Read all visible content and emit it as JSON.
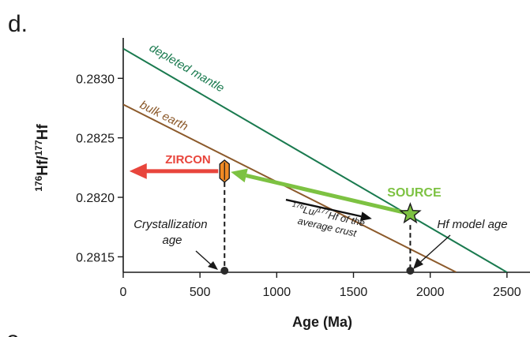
{
  "panel_label": "d.",
  "next_panel_fragment": "e",
  "colors": {
    "depleted_mantle": "#1a7a4f",
    "bulk_earth": "#8c5a2b",
    "zircon": "#e8453c",
    "source": "#7dc242",
    "axis": "#1a1a1a",
    "zircon_marker": "#f08a24",
    "black_arrow": "#111111"
  },
  "chart_data": {
    "type": "line",
    "title": "",
    "xlabel": "Age (Ma)",
    "ylabel_parts": {
      "sup1": "176",
      "base1": "Hf/",
      "sup2": "177",
      "base2": "Hf"
    },
    "xlim": [
      0,
      2650
    ],
    "ylim": [
      0.28137,
      0.28334
    ],
    "x_ticks": [
      0,
      500,
      1000,
      1500,
      2000,
      2500
    ],
    "x_tick_labels": [
      "0",
      "500",
      "1000",
      "1500",
      "2000",
      "2500"
    ],
    "y_ticks": [
      0.2815,
      0.282,
      0.2825,
      0.283
    ],
    "y_tick_labels": [
      "0.2815",
      "0.2820",
      "0.2825",
      "0.2830"
    ],
    "grid": false,
    "series": [
      {
        "name": "depleted mantle",
        "x": [
          0,
          2500
        ],
        "y": [
          0.28325,
          0.28137
        ]
      },
      {
        "name": "bulk earth",
        "x": [
          0,
          2170
        ],
        "y": [
          0.28278,
          0.28137
        ]
      }
    ],
    "annotations": {
      "zircon_label": "ZIRCON",
      "source_label": "SOURCE",
      "crust_label_parts": {
        "sup1": "176",
        "mid1": "Lu/",
        "sup2": "177",
        "mid2": "Hf of the",
        "line2": "average crust"
      },
      "crystallization_line1": "Crystallization",
      "crystallization_line2": "age",
      "hf_model_age": "Hf model age",
      "zircon_point": {
        "x": 660,
        "y": 0.28222
      },
      "source_point": {
        "x": 1870,
        "y": 0.28186
      },
      "zircon_arrow_to_x": 40,
      "black_arrow": {
        "from": [
          1060,
          0.28198
        ],
        "to": [
          1620,
          0.28182
        ]
      }
    }
  }
}
